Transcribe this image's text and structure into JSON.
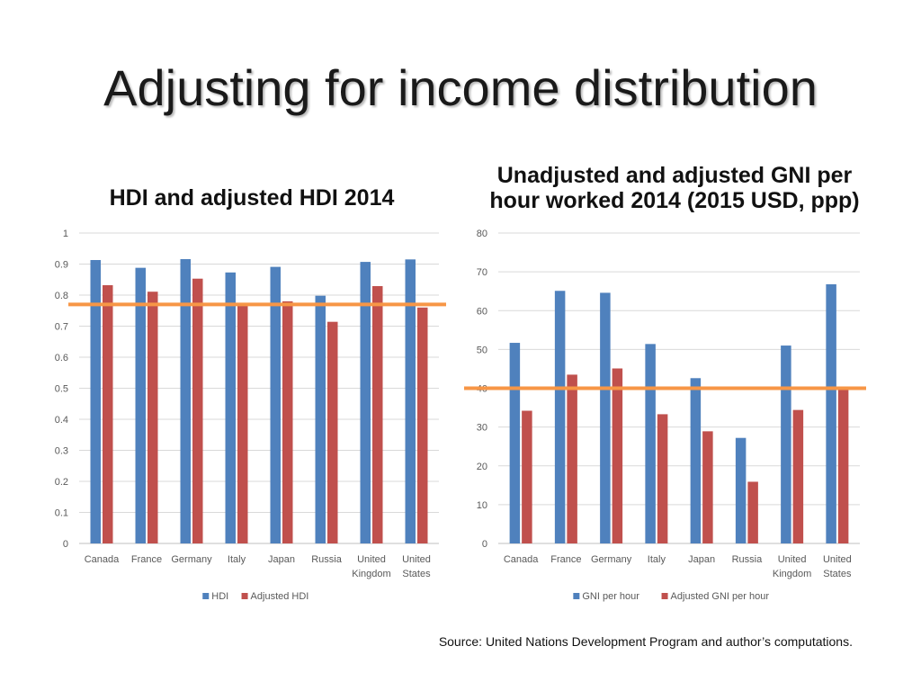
{
  "slide": {
    "title": "Adjusting for income distribution",
    "source": "Source: United Nations Development Program and author’s computations."
  },
  "chart_data": [
    {
      "type": "bar",
      "title": "HDI and adjusted HDI 2014",
      "categories": [
        [
          "Canada"
        ],
        [
          "France"
        ],
        [
          "Germany"
        ],
        [
          "Italy"
        ],
        [
          "Japan"
        ],
        [
          "Russia"
        ],
        [
          "United",
          "Kingdom"
        ],
        [
          "United",
          "States"
        ]
      ],
      "series": [
        {
          "name": "HDI",
          "color": "#4f81bd",
          "values": [
            0.913,
            0.888,
            0.916,
            0.873,
            0.891,
            0.798,
            0.907,
            0.915
          ]
        },
        {
          "name": "Adjusted HDI",
          "color": "#c0504d",
          "values": [
            0.832,
            0.811,
            0.853,
            0.768,
            0.78,
            0.714,
            0.829,
            0.76
          ]
        }
      ],
      "ylim": [
        0,
        1
      ],
      "yticks": [
        "0",
        "0.1",
        "0.2",
        "0.3",
        "0.4",
        "0.5",
        "0.6",
        "0.7",
        "0.8",
        "0.9",
        "1"
      ],
      "reference_line": {
        "value": 0.77,
        "color": "#f79646"
      },
      "grid": true,
      "legend": "bottom"
    },
    {
      "type": "bar",
      "title": "Unadjusted and adjusted GNI per hour worked 2014 (2015 USD, ppp)",
      "categories": [
        [
          "Canada"
        ],
        [
          "France"
        ],
        [
          "Germany"
        ],
        [
          "Italy"
        ],
        [
          "Japan"
        ],
        [
          "Russia"
        ],
        [
          "United",
          "Kingdom"
        ],
        [
          "United",
          "States"
        ]
      ],
      "series": [
        {
          "name": "GNI per hour",
          "color": "#4f81bd",
          "values": [
            51.7,
            65.1,
            64.6,
            51.4,
            42.6,
            27.2,
            51.0,
            66.8
          ]
        },
        {
          "name": "Adjusted GNI per hour",
          "color": "#c0504d",
          "values": [
            34.2,
            43.5,
            45.1,
            33.3,
            28.9,
            15.9,
            34.4,
            39.6
          ]
        }
      ],
      "ylim": [
        0,
        80
      ],
      "yticks": [
        "0",
        "10",
        "20",
        "30",
        "40",
        "50",
        "60",
        "70",
        "80"
      ],
      "reference_line": {
        "value": 40,
        "color": "#f79646"
      },
      "grid": true,
      "legend": "bottom"
    }
  ]
}
